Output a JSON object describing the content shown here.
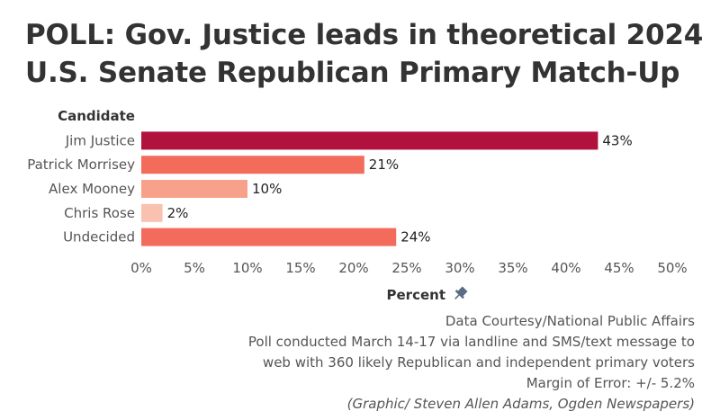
{
  "title_lines": [
    "POLL: Gov. Justice leads in theoretical 2024",
    "U.S. Senate Republican Primary Match-Up"
  ],
  "notes": {
    "source": "Data Courtesy/National Public Affairs",
    "method_line1": "Poll conducted March 14-17 via landline and SMS/text message to",
    "method_line2": "web with 360 likely Republican and independent primary voters",
    "margin": "Margin of Error: +/- 5.2%",
    "credit": "(Graphic/ Steven Allen Adams, Ogden Newspapers)"
  },
  "pin_icon": "pin-icon",
  "chart_data": {
    "type": "bar",
    "orientation": "horizontal",
    "y_header": "Candidate",
    "xlabel": "Percent",
    "categories": [
      "Jim Justice",
      "Patrick Morrisey",
      "Alex Mooney",
      "Chris Rose",
      "Undecided"
    ],
    "values": [
      43,
      21,
      10,
      2,
      24
    ],
    "value_labels": [
      "43%",
      "21%",
      "10%",
      "2%",
      "24%"
    ],
    "colors": [
      "#b0123d",
      "#f26b5b",
      "#f7a08a",
      "#f9c1b0",
      "#f26b5b"
    ],
    "xlim": [
      0,
      50
    ],
    "xticks": [
      0,
      5,
      10,
      15,
      20,
      25,
      30,
      35,
      40,
      45,
      50
    ],
    "xtick_labels": [
      "0%",
      "5%",
      "10%",
      "15%",
      "20%",
      "25%",
      "30%",
      "35%",
      "40%",
      "45%",
      "50%"
    ],
    "grid": false
  }
}
